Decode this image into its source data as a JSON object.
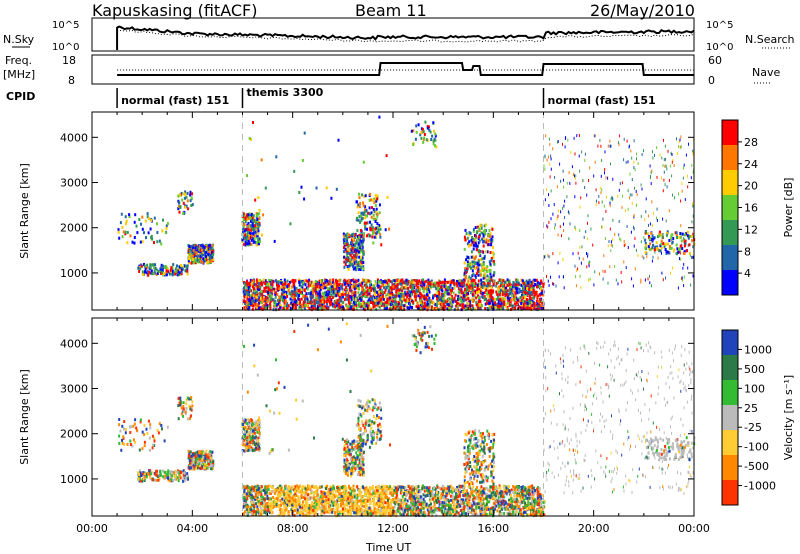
{
  "header": {
    "station": "Kapuskasing (fitACF)",
    "beam": "Beam 11",
    "date": "26/May/2010"
  },
  "top_panels": {
    "nsky_label": "N.Sky",
    "nsky_ticks": [
      "10^5",
      "10^0"
    ],
    "nsearch_label": "N.Search",
    "nsearch_ticks": [
      "10^5",
      "10^0"
    ],
    "freq_label": "Freq.",
    "freq_unit": "[MHz]",
    "freq_ticks": [
      "18",
      "8"
    ],
    "nave_label": "Nave",
    "nave_ticks": [
      "60",
      "0"
    ],
    "cpid_label": "CPID",
    "cpid_segments": [
      {
        "label": "normal (fast) 151",
        "start_hour": 1.0,
        "end_hour": 6.0
      },
      {
        "label": "themis 3300",
        "start_hour": 6.0,
        "end_hour": 18.0
      },
      {
        "label": "normal (fast) 151",
        "start_hour": 18.0,
        "end_hour": 24.0
      }
    ]
  },
  "colorbars": {
    "power": {
      "label": "Power [dB]",
      "ticks": [
        "28",
        "24",
        "20",
        "16",
        "12",
        "8",
        "4"
      ],
      "colors": [
        "#ff0000",
        "#ff7700",
        "#ffcc00",
        "#66cc33",
        "#339955",
        "#2266aa",
        "#0000ff"
      ]
    },
    "velocity": {
      "label": "Velocity [m s⁻¹]",
      "ticks": [
        "1000",
        "500",
        "100",
        "25",
        "-25",
        "-100",
        "-500",
        "-1000"
      ],
      "colors": [
        "#2244bb",
        "#2b7a48",
        "#33bb33",
        "#bbbbbb",
        "#ffcc33",
        "#ff8800",
        "#ff3300"
      ]
    }
  },
  "chart_data": [
    {
      "type": "heatmap",
      "name": "Power",
      "xlabel": "Time UT",
      "ylabel": "Slant Range [km]",
      "x_ticks": [
        "00:00",
        "04:00",
        "08:00",
        "12:00",
        "16:00",
        "20:00",
        "00:00"
      ],
      "y_ticks": [
        "1000",
        "2000",
        "3000",
        "4000"
      ],
      "xlim_hours": [
        0,
        24
      ],
      "ylim_km": [
        180,
        4560
      ],
      "grid": false,
      "mode_change_hours": [
        6.0,
        18.0
      ]
    },
    {
      "type": "heatmap",
      "name": "Velocity",
      "xlabel": "Time UT",
      "ylabel": "Slant Range [km]",
      "x_ticks": [
        "00:00",
        "04:00",
        "08:00",
        "12:00",
        "16:00",
        "20:00",
        "00:00"
      ],
      "y_ticks": [
        "1000",
        "2000",
        "3000",
        "4000"
      ],
      "xlim_hours": [
        0,
        24
      ],
      "ylim_km": [
        180,
        4560
      ],
      "grid": false,
      "mode_change_hours": [
        6.0,
        18.0
      ]
    }
  ]
}
